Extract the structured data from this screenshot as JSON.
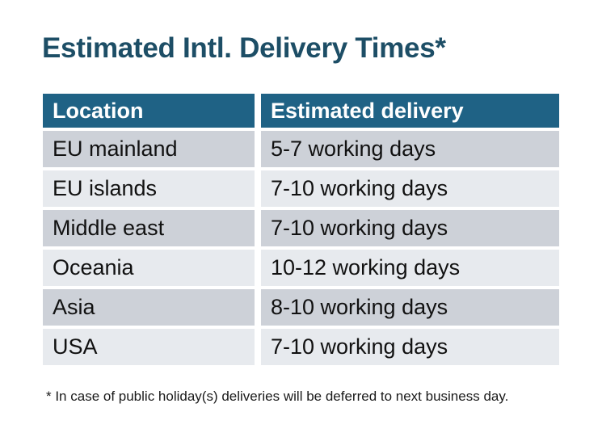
{
  "title": "Estimated Intl. Delivery Times*",
  "table": {
    "headers": [
      "Location",
      "Estimated delivery"
    ],
    "rows": [
      {
        "location": "EU mainland",
        "delivery": "5-7 working days"
      },
      {
        "location": "EU islands",
        "delivery": "7-10 working days"
      },
      {
        "location": "Middle east",
        "delivery": "7-10 working days"
      },
      {
        "location": "Oceania",
        "delivery": "10-12 working days"
      },
      {
        "location": "Asia",
        "delivery": "8-10 working days"
      },
      {
        "location": "USA",
        "delivery": "7-10 working days"
      }
    ]
  },
  "footnote": "* In case of public holiday(s) deliveries will be deferred to next business day.",
  "colors": {
    "title_color": "#1d4e66",
    "header_bg": "#1f6285",
    "header_text": "#ffffff",
    "row_odd_bg": "#cdd1d8",
    "row_even_bg": "#e7eaee",
    "cell_text": "#111111",
    "footnote_color": "#1a1a1a",
    "page_bg": "#ffffff"
  }
}
